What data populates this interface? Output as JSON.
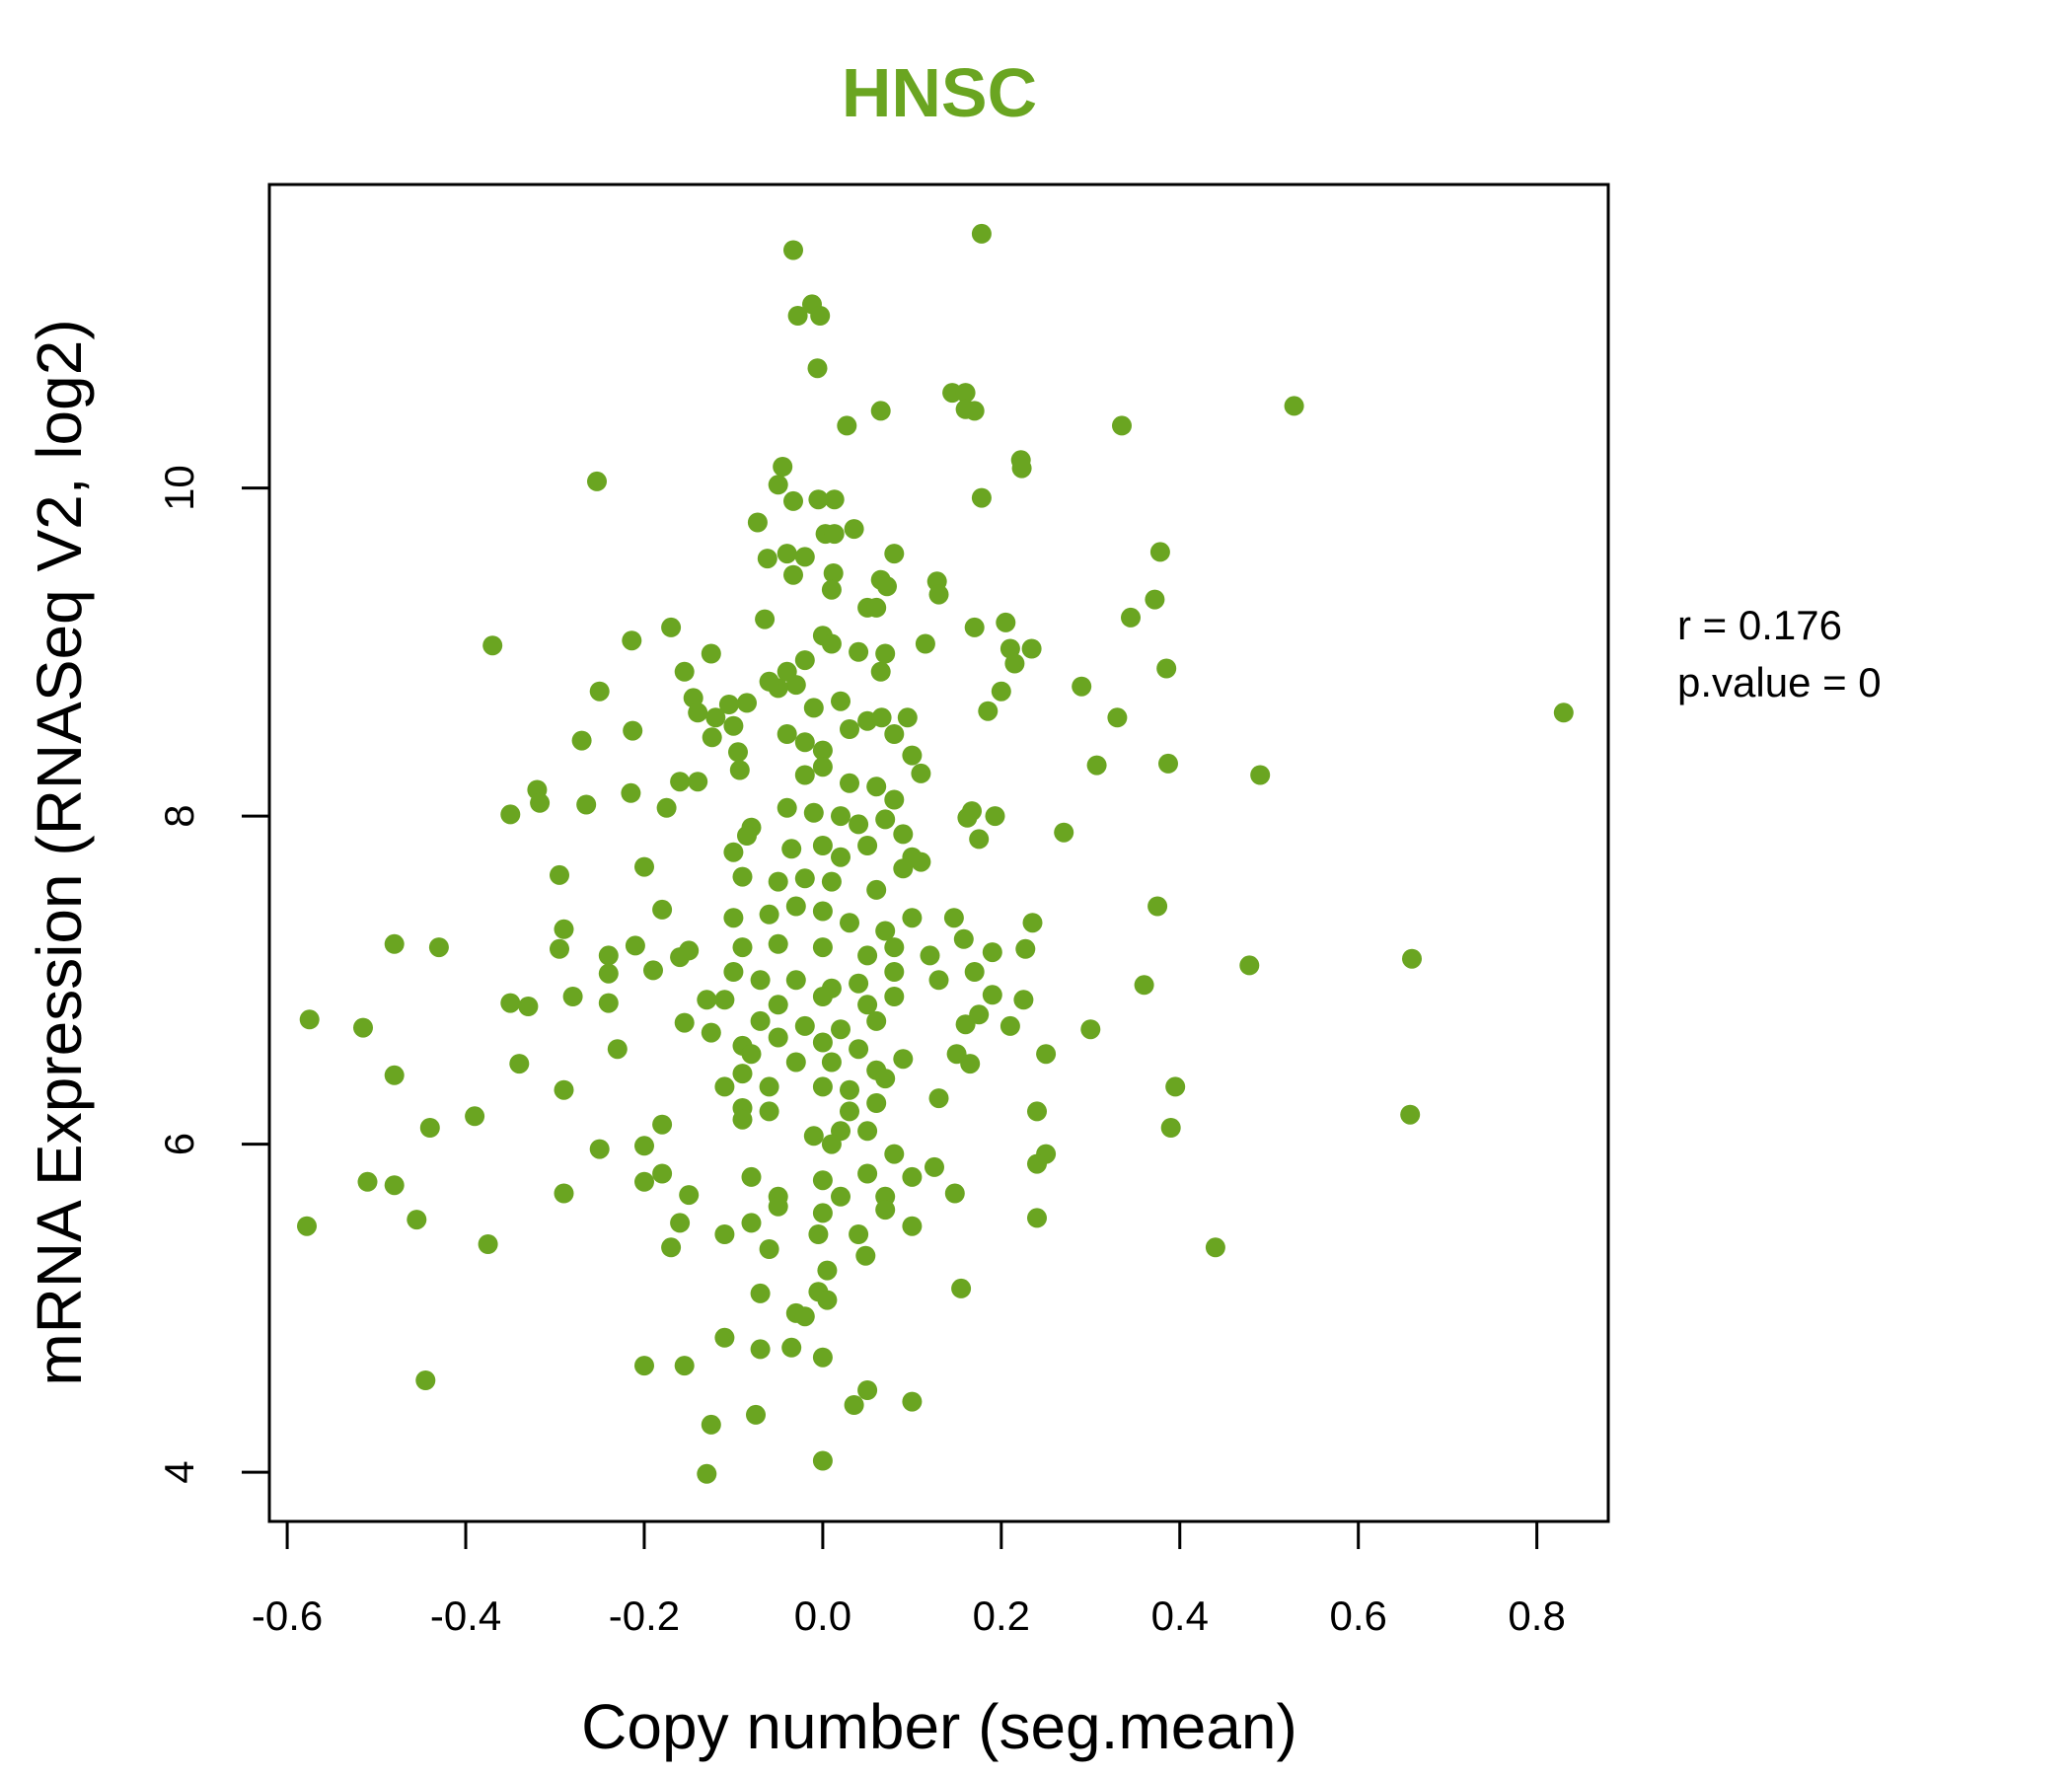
{
  "chart_data": {
    "type": "scatter",
    "title": "HNSC",
    "title_color": "#6aa521",
    "point_color": "#6aa521",
    "xlabel": "Copy number (seg.mean)",
    "ylabel": "mRNA Expression (RNASeq V2, log2)",
    "xlim": [
      -0.62,
      0.88
    ],
    "ylim": [
      3.7,
      11.85
    ],
    "x_ticks": [
      -0.6,
      -0.4,
      -0.2,
      0.0,
      0.2,
      0.4,
      0.6,
      0.8
    ],
    "x_tick_labels": [
      "-0.6",
      "-0.4",
      "-0.2",
      "0.0",
      "0.2",
      "0.4",
      "0.6",
      "0.8"
    ],
    "y_ticks": [
      4,
      6,
      8,
      10
    ],
    "y_tick_labels": [
      "4",
      "6",
      "8",
      "10"
    ],
    "grid": false,
    "stats": {
      "r_label": "r = 0.176",
      "p_label": "p.value = 0"
    },
    "points": [
      [
        0.178,
        11.55
      ],
      [
        -0.033,
        11.45
      ],
      [
        -0.012,
        11.12
      ],
      [
        -0.028,
        11.05
      ],
      [
        -0.003,
        11.05
      ],
      [
        -0.006,
        10.73
      ],
      [
        0.145,
        10.58
      ],
      [
        0.16,
        10.58
      ],
      [
        0.16,
        10.48
      ],
      [
        0.17,
        10.47
      ],
      [
        0.065,
        10.47
      ],
      [
        0.528,
        10.5
      ],
      [
        0.335,
        10.38
      ],
      [
        0.027,
        10.38
      ],
      [
        0.222,
        10.17
      ],
      [
        0.223,
        10.12
      ],
      [
        -0.045,
        10.13
      ],
      [
        -0.253,
        10.04
      ],
      [
        -0.05,
        10.02
      ],
      [
        -0.033,
        9.92
      ],
      [
        0.013,
        9.93
      ],
      [
        -0.005,
        9.93
      ],
      [
        0.178,
        9.94
      ],
      [
        -0.073,
        9.79
      ],
      [
        0.003,
        9.72
      ],
      [
        0.013,
        9.72
      ],
      [
        0.035,
        9.75
      ],
      [
        0.08,
        9.6
      ],
      [
        0.378,
        9.61
      ],
      [
        -0.062,
        9.57
      ],
      [
        -0.04,
        9.6
      ],
      [
        -0.02,
        9.58
      ],
      [
        -0.033,
        9.47
      ],
      [
        0.012,
        9.48
      ],
      [
        0.01,
        9.38
      ],
      [
        0.065,
        9.44
      ],
      [
        0.072,
        9.4
      ],
      [
        0.128,
        9.43
      ],
      [
        0.13,
        9.35
      ],
      [
        0.372,
        9.32
      ],
      [
        0.05,
        9.27
      ],
      [
        0.06,
        9.27
      ],
      [
        -0.065,
        9.2
      ],
      [
        0.205,
        9.18
      ],
      [
        0.17,
        9.15
      ],
      [
        -0.17,
        9.15
      ],
      [
        0.345,
        9.21
      ],
      [
        -0.214,
        9.07
      ],
      [
        -0.37,
        9.04
      ],
      [
        -0.125,
        8.99
      ],
      [
        0.21,
        9.02
      ],
      [
        0.234,
        9.02
      ],
      [
        0.215,
        8.93
      ],
      [
        0.115,
        9.05
      ],
      [
        0.07,
        8.99
      ],
      [
        0.04,
        9.0
      ],
      [
        0.0,
        9.1
      ],
      [
        0.01,
        9.05
      ],
      [
        -0.02,
        8.95
      ],
      [
        -0.03,
        8.8
      ],
      [
        -0.04,
        8.88
      ],
      [
        -0.05,
        8.78
      ],
      [
        -0.06,
        8.82
      ],
      [
        0.385,
        8.9
      ],
      [
        0.065,
        8.88
      ],
      [
        -0.155,
        8.88
      ],
      [
        -0.25,
        8.76
      ],
      [
        0.2,
        8.76
      ],
      [
        0.29,
        8.79
      ],
      [
        -0.145,
        8.72
      ],
      [
        -0.085,
        8.69
      ],
      [
        -0.105,
        8.68
      ],
      [
        -0.14,
        8.63
      ],
      [
        -0.12,
        8.6
      ],
      [
        0.185,
        8.64
      ],
      [
        -0.01,
        8.66
      ],
      [
        0.02,
        8.7
      ],
      [
        0.03,
        8.53
      ],
      [
        0.05,
        8.58
      ],
      [
        0.066,
        8.6
      ],
      [
        0.08,
        8.5
      ],
      [
        0.095,
        8.6
      ],
      [
        -0.213,
        8.52
      ],
      [
        -0.1,
        8.55
      ],
      [
        -0.124,
        8.48
      ],
      [
        0.33,
        8.6
      ],
      [
        -0.04,
        8.5
      ],
      [
        -0.02,
        8.45
      ],
      [
        0.0,
        8.4
      ],
      [
        0.83,
        8.63
      ],
      [
        -0.27,
        8.46
      ],
      [
        -0.095,
        8.39
      ],
      [
        0.1,
        8.37
      ],
      [
        0.11,
        8.26
      ],
      [
        0.307,
        8.31
      ],
      [
        0.387,
        8.32
      ],
      [
        0.49,
        8.25
      ],
      [
        -0.16,
        8.21
      ],
      [
        -0.14,
        8.21
      ],
      [
        -0.093,
        8.28
      ],
      [
        -0.02,
        8.25
      ],
      [
        0.0,
        8.3
      ],
      [
        0.03,
        8.2
      ],
      [
        0.06,
        8.18
      ],
      [
        0.08,
        8.1
      ],
      [
        -0.32,
        8.16
      ],
      [
        -0.215,
        8.14
      ],
      [
        -0.317,
        8.08
      ],
      [
        -0.265,
        8.07
      ],
      [
        -0.175,
        8.05
      ],
      [
        -0.35,
        8.01
      ],
      [
        0.162,
        7.99
      ],
      [
        0.167,
        8.03
      ],
      [
        0.193,
        8.0
      ],
      [
        -0.04,
        8.05
      ],
      [
        -0.01,
        8.02
      ],
      [
        0.02,
        8.0
      ],
      [
        0.04,
        7.95
      ],
      [
        0.07,
        7.98
      ],
      [
        -0.08,
        7.93
      ],
      [
        -0.085,
        7.88
      ],
      [
        0.09,
        7.89
      ],
      [
        0.175,
        7.86
      ],
      [
        0.27,
        7.9
      ],
      [
        -0.1,
        7.78
      ],
      [
        -0.035,
        7.8
      ],
      [
        0.0,
        7.82
      ],
      [
        0.02,
        7.75
      ],
      [
        0.05,
        7.82
      ],
      [
        0.1,
        7.75
      ],
      [
        0.11,
        7.72
      ],
      [
        -0.2,
        7.69
      ],
      [
        -0.295,
        7.64
      ],
      [
        -0.09,
        7.63
      ],
      [
        -0.05,
        7.6
      ],
      [
        -0.02,
        7.62
      ],
      [
        0.01,
        7.6
      ],
      [
        0.06,
        7.55
      ],
      [
        0.09,
        7.68
      ],
      [
        -0.18,
        7.43
      ],
      [
        -0.1,
        7.38
      ],
      [
        -0.06,
        7.4
      ],
      [
        -0.03,
        7.45
      ],
      [
        0.0,
        7.42
      ],
      [
        0.03,
        7.35
      ],
      [
        0.07,
        7.3
      ],
      [
        0.1,
        7.38
      ],
      [
        0.147,
        7.38
      ],
      [
        0.235,
        7.35
      ],
      [
        0.375,
        7.45
      ],
      [
        -0.29,
        7.31
      ],
      [
        -0.48,
        7.22
      ],
      [
        -0.43,
        7.2
      ],
      [
        -0.295,
        7.19
      ],
      [
        -0.21,
        7.21
      ],
      [
        -0.15,
        7.18
      ],
      [
        -0.09,
        7.2
      ],
      [
        -0.05,
        7.22
      ],
      [
        0.0,
        7.2
      ],
      [
        0.05,
        7.15
      ],
      [
        0.08,
        7.2
      ],
      [
        0.12,
        7.15
      ],
      [
        0.158,
        7.25
      ],
      [
        0.19,
        7.17
      ],
      [
        0.227,
        7.19
      ],
      [
        0.66,
        7.13
      ],
      [
        -0.24,
        7.15
      ],
      [
        -0.16,
        7.14
      ],
      [
        -0.19,
        7.06
      ],
      [
        -0.24,
        7.04
      ],
      [
        -0.1,
        7.05
      ],
      [
        -0.07,
        7.0
      ],
      [
        -0.03,
        7.0
      ],
      [
        0.01,
        6.95
      ],
      [
        0.04,
        6.98
      ],
      [
        0.08,
        7.05
      ],
      [
        0.13,
        7.0
      ],
      [
        0.17,
        7.05
      ],
      [
        0.36,
        6.97
      ],
      [
        0.478,
        7.09
      ],
      [
        -0.28,
        6.9
      ],
      [
        -0.35,
        6.86
      ],
      [
        -0.33,
        6.84
      ],
      [
        -0.24,
        6.86
      ],
      [
        -0.13,
        6.88
      ],
      [
        -0.11,
        6.88
      ],
      [
        -0.05,
        6.85
      ],
      [
        0.0,
        6.9
      ],
      [
        0.05,
        6.85
      ],
      [
        0.08,
        6.9
      ],
      [
        0.19,
        6.91
      ],
      [
        0.225,
        6.88
      ],
      [
        -0.575,
        6.76
      ],
      [
        -0.515,
        6.71
      ],
      [
        -0.155,
        6.74
      ],
      [
        -0.07,
        6.75
      ],
      [
        -0.02,
        6.72
      ],
      [
        0.02,
        6.7
      ],
      [
        0.06,
        6.75
      ],
      [
        0.16,
        6.73
      ],
      [
        0.175,
        6.79
      ],
      [
        0.21,
        6.72
      ],
      [
        0.3,
        6.7
      ],
      [
        -0.125,
        6.68
      ],
      [
        -0.09,
        6.6
      ],
      [
        -0.05,
        6.65
      ],
      [
        0.0,
        6.62
      ],
      [
        0.04,
        6.58
      ],
      [
        -0.23,
        6.58
      ],
      [
        0.25,
        6.55
      ],
      [
        0.15,
        6.55
      ],
      [
        -0.34,
        6.49
      ],
      [
        -0.08,
        6.55
      ],
      [
        -0.03,
        6.5
      ],
      [
        0.01,
        6.5
      ],
      [
        0.06,
        6.45
      ],
      [
        0.09,
        6.52
      ],
      [
        0.165,
        6.49
      ],
      [
        -0.48,
        6.42
      ],
      [
        -0.09,
        6.43
      ],
      [
        -0.06,
        6.35
      ],
      [
        0.0,
        6.35
      ],
      [
        0.03,
        6.33
      ],
      [
        0.07,
        6.4
      ],
      [
        -0.29,
        6.33
      ],
      [
        -0.11,
        6.35
      ],
      [
        0.13,
        6.28
      ],
      [
        0.395,
        6.35
      ],
      [
        -0.39,
        6.17
      ],
      [
        -0.44,
        6.1
      ],
      [
        -0.09,
        6.22
      ],
      [
        -0.06,
        6.2
      ],
      [
        0.03,
        6.2
      ],
      [
        0.06,
        6.25
      ],
      [
        0.24,
        6.2
      ],
      [
        0.658,
        6.18
      ],
      [
        0.39,
        6.1
      ],
      [
        -0.18,
        6.12
      ],
      [
        -0.09,
        6.15
      ],
      [
        0.02,
        6.08
      ],
      [
        -0.2,
        5.99
      ],
      [
        -0.25,
        5.97
      ],
      [
        -0.01,
        6.05
      ],
      [
        0.01,
        6.0
      ],
      [
        0.05,
        6.08
      ],
      [
        0.08,
        5.94
      ],
      [
        0.25,
        5.94
      ],
      [
        0.24,
        5.88
      ],
      [
        -0.18,
        5.82
      ],
      [
        -0.2,
        5.77
      ],
      [
        0.05,
        5.82
      ],
      [
        0.1,
        5.8
      ],
      [
        0.125,
        5.86
      ],
      [
        -0.51,
        5.77
      ],
      [
        -0.48,
        5.75
      ],
      [
        -0.08,
        5.8
      ],
      [
        0.0,
        5.78
      ],
      [
        -0.29,
        5.7
      ],
      [
        -0.15,
        5.69
      ],
      [
        -0.05,
        5.68
      ],
      [
        0.02,
        5.68
      ],
      [
        0.07,
        5.68
      ],
      [
        0.148,
        5.7
      ],
      [
        0.07,
        5.6
      ],
      [
        -0.05,
        5.62
      ],
      [
        0.0,
        5.58
      ],
      [
        -0.578,
        5.5
      ],
      [
        -0.455,
        5.54
      ],
      [
        -0.16,
        5.52
      ],
      [
        -0.08,
        5.52
      ],
      [
        0.1,
        5.5
      ],
      [
        0.24,
        5.55
      ],
      [
        -0.11,
        5.45
      ],
      [
        0.04,
        5.45
      ],
      [
        -0.005,
        5.45
      ],
      [
        -0.375,
        5.39
      ],
      [
        -0.17,
        5.37
      ],
      [
        -0.06,
        5.36
      ],
      [
        0.048,
        5.32
      ],
      [
        0.44,
        5.37
      ],
      [
        0.005,
        5.23
      ],
      [
        0.155,
        5.12
      ],
      [
        -0.07,
        5.09
      ],
      [
        -0.005,
        5.1
      ],
      [
        0.005,
        5.05
      ],
      [
        -0.03,
        4.97
      ],
      [
        -0.02,
        4.95
      ],
      [
        -0.11,
        4.82
      ],
      [
        -0.035,
        4.76
      ],
      [
        -0.07,
        4.75
      ],
      [
        -0.2,
        4.65
      ],
      [
        -0.155,
        4.65
      ],
      [
        0.0,
        4.7
      ],
      [
        -0.445,
        4.56
      ],
      [
        0.05,
        4.5
      ],
      [
        0.035,
        4.41
      ],
      [
        0.1,
        4.43
      ],
      [
        -0.075,
        4.35
      ],
      [
        -0.125,
        4.29
      ],
      [
        0.0,
        4.07
      ],
      [
        -0.13,
        3.99
      ]
    ]
  }
}
